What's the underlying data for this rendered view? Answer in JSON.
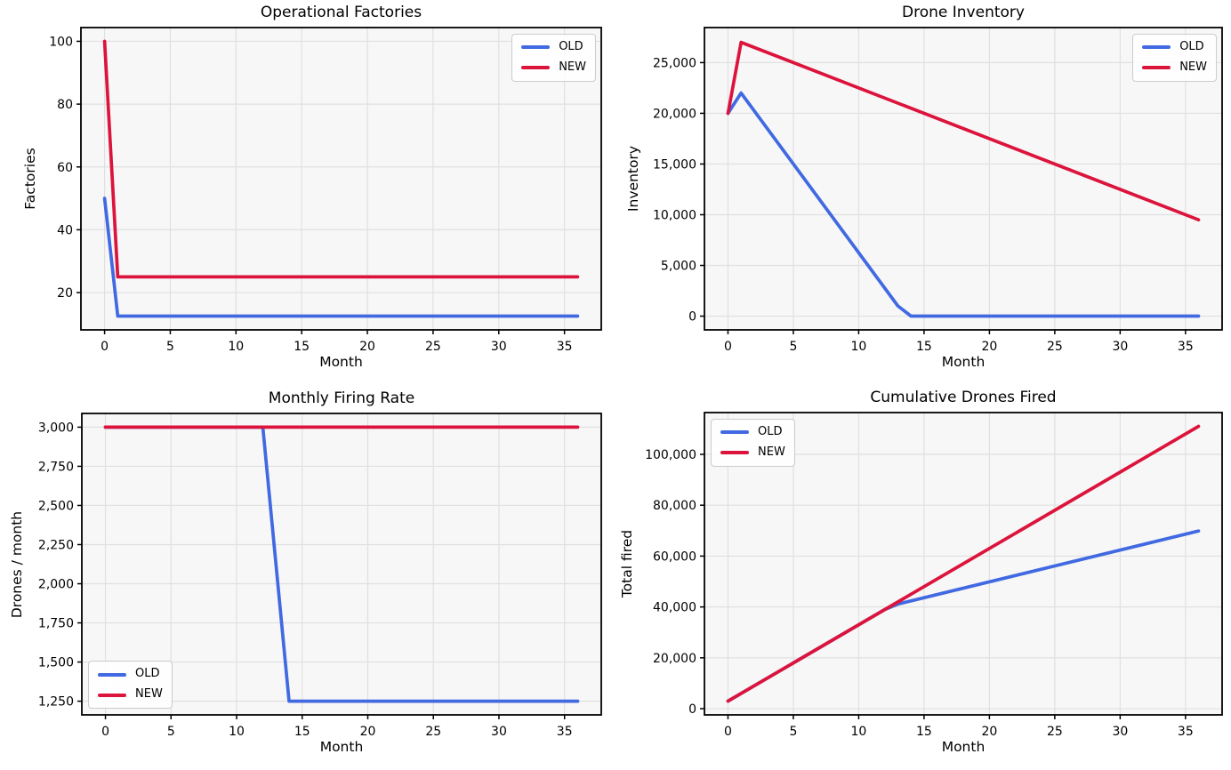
{
  "figure": {
    "background": "#ffffff",
    "plot_background": "#f7f7f7",
    "grid_color": "#e0e0e0",
    "spine_color": "#000000",
    "accent_old": "#4169E1",
    "accent_new": "#DC143C"
  },
  "chart_data": [
    {
      "type": "line",
      "title": "Operational Factories",
      "xlabel": "Month",
      "ylabel": "Factories",
      "xlim": [
        -1.8,
        37.8
      ],
      "ylim": [
        8.125,
        104.375
      ],
      "xticks": [
        0,
        5,
        10,
        15,
        20,
        25,
        30,
        35
      ],
      "xtick_labels": [
        "0",
        "5",
        "10",
        "15",
        "20",
        "25",
        "30",
        "35"
      ],
      "yticks": [
        20,
        40,
        60,
        80,
        100
      ],
      "ytick_labels": [
        "20",
        "40",
        "60",
        "80",
        "100"
      ],
      "grid": true,
      "legend_pos": "upper-right",
      "series": [
        {
          "name": "OLD",
          "color": "#4169E1",
          "x": [
            0,
            1,
            36
          ],
          "y": [
            50,
            12.5,
            12.5
          ]
        },
        {
          "name": "NEW",
          "color": "#DC143C",
          "x": [
            0,
            1,
            36
          ],
          "y": [
            100,
            25,
            25
          ]
        }
      ]
    },
    {
      "type": "line",
      "title": "Drone Inventory",
      "xlabel": "Month",
      "ylabel": "Inventory",
      "xlim": [
        -1.8,
        37.8
      ],
      "ylim": [
        -1355,
        28455
      ],
      "xticks": [
        0,
        5,
        10,
        15,
        20,
        25,
        30,
        35
      ],
      "xtick_labels": [
        "0",
        "5",
        "10",
        "15",
        "20",
        "25",
        "30",
        "35"
      ],
      "yticks": [
        0,
        5000,
        10000,
        15000,
        20000,
        25000
      ],
      "ytick_labels": [
        "0",
        "5,000",
        "10,000",
        "15,000",
        "20,000",
        "25,000"
      ],
      "grid": true,
      "legend_pos": "upper-right",
      "series": [
        {
          "name": "OLD",
          "color": "#4169E1",
          "x": [
            0,
            1,
            13,
            14,
            36
          ],
          "y": [
            20000,
            22000,
            1000,
            0,
            0
          ]
        },
        {
          "name": "NEW",
          "color": "#DC143C",
          "x": [
            0,
            1,
            36
          ],
          "y": [
            20000,
            27000,
            9500
          ]
        }
      ]
    },
    {
      "type": "line",
      "title": "Monthly Firing Rate",
      "xlabel": "Month",
      "ylabel": "Drones / month",
      "xlim": [
        -1.8,
        37.8
      ],
      "ylim": [
        1162.5,
        3087.5
      ],
      "xticks": [
        0,
        5,
        10,
        15,
        20,
        25,
        30,
        35
      ],
      "xtick_labels": [
        "0",
        "5",
        "10",
        "15",
        "20",
        "25",
        "30",
        "35"
      ],
      "yticks": [
        1250,
        1500,
        1750,
        2000,
        2250,
        2500,
        2750,
        3000
      ],
      "ytick_labels": [
        "1,250",
        "1,500",
        "1,750",
        "2,000",
        "2,250",
        "2,500",
        "2,750",
        "3,000"
      ],
      "grid": true,
      "legend_pos": "lower-left",
      "series": [
        {
          "name": "OLD",
          "color": "#4169E1",
          "x": [
            0,
            12,
            14,
            36
          ],
          "y": [
            3000,
            3000,
            1250,
            1250
          ]
        },
        {
          "name": "NEW",
          "color": "#DC143C",
          "x": [
            0,
            36
          ],
          "y": [
            3000,
            3000
          ]
        }
      ]
    },
    {
      "type": "line",
      "title": "Cumulative Drones Fired",
      "xlabel": "Month",
      "ylabel": "Total fired",
      "xlim": [
        -1.8,
        37.8
      ],
      "ylim": [
        -2430,
        116430
      ],
      "xticks": [
        0,
        5,
        10,
        15,
        20,
        25,
        30,
        35
      ],
      "xtick_labels": [
        "0",
        "5",
        "10",
        "15",
        "20",
        "25",
        "30",
        "35"
      ],
      "yticks": [
        0,
        20000,
        40000,
        60000,
        80000,
        100000
      ],
      "ytick_labels": [
        "0",
        "20,000",
        "40,000",
        "60,000",
        "80,000",
        "100,000"
      ],
      "grid": true,
      "legend_pos": "upper-left",
      "series": [
        {
          "name": "OLD",
          "color": "#4169E1",
          "x": [
            0,
            12,
            13,
            14,
            36
          ],
          "y": [
            3000,
            39000,
            41125,
            42375,
            69875
          ]
        },
        {
          "name": "NEW",
          "color": "#DC143C",
          "x": [
            0,
            36
          ],
          "y": [
            3000,
            111000
          ]
        }
      ]
    }
  ]
}
